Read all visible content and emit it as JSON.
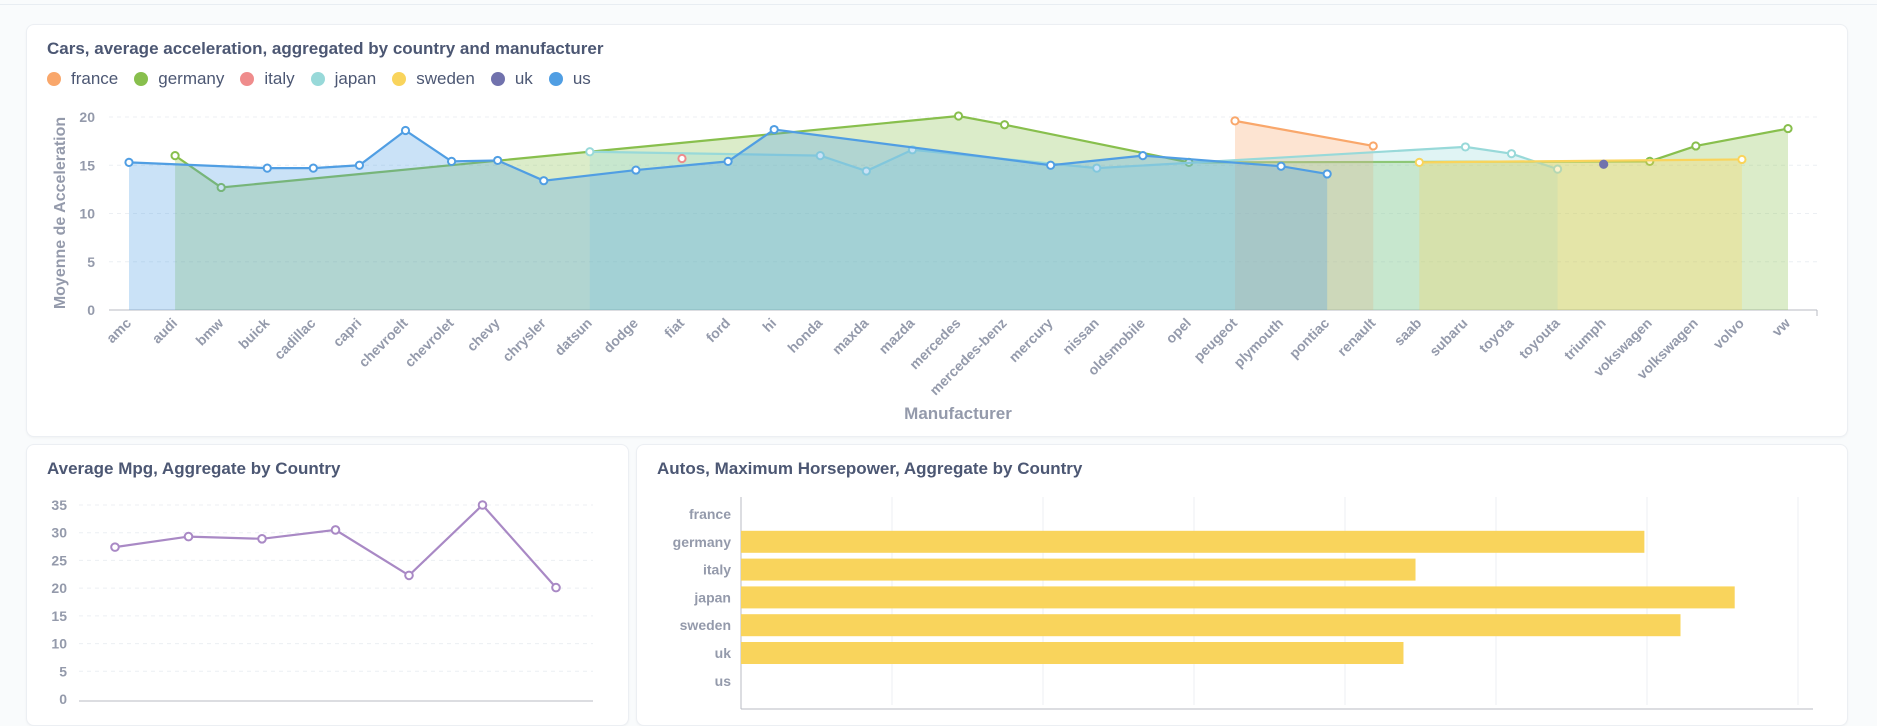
{
  "colors": {
    "france": "#f9a76b",
    "germany": "#88bf4d",
    "italy": "#ef8c8c",
    "japan": "#98d9d9",
    "sweden": "#f9d45c",
    "uk": "#7172ad",
    "us": "#509ee3",
    "mpg": "#a989c5",
    "hp": "#f9d45c"
  },
  "cards": {
    "accel_title": "Cars, average acceleration, aggregated by country and manufacturer",
    "mpg_title": "Average Mpg, Aggregate by Country",
    "hp_title": "Autos, Maximum Horsepower, Aggregate by Country"
  },
  "chart_data": [
    {
      "type": "area",
      "title": "Cars, average acceleration, aggregated by country and manufacturer",
      "xlabel": "Manufacturer",
      "ylabel": "Moyenne de Acceleration",
      "ylim": [
        0,
        20
      ],
      "yticks": [
        0,
        5,
        10,
        15,
        20
      ],
      "grid": true,
      "legend_position": "top-left",
      "categories": [
        "amc",
        "audi",
        "bmw",
        "buick",
        "cadillac",
        "capri",
        "chevroelt",
        "chevrolet",
        "chevy",
        "chrysler",
        "datsun",
        "dodge",
        "fiat",
        "ford",
        "hi",
        "honda",
        "maxda",
        "mazda",
        "mercedes",
        "mercedes-benz",
        "mercury",
        "nissan",
        "oldsmobile",
        "opel",
        "peugeot",
        "plymouth",
        "pontiac",
        "renault",
        "saab",
        "subaru",
        "toyota",
        "toyouta",
        "triumph",
        "vokswagen",
        "volkswagen",
        "volvo",
        "vw"
      ],
      "series": [
        {
          "name": "france",
          "points": [
            [
              "peugeot",
              19.6
            ],
            [
              "renault",
              17.0
            ]
          ]
        },
        {
          "name": "germany",
          "points": [
            [
              "audi",
              16.0
            ],
            [
              "bmw",
              12.7
            ],
            [
              "mercedes",
              20.1
            ],
            [
              "mercedes-benz",
              19.2
            ],
            [
              "opel",
              15.3
            ],
            [
              "vokswagen",
              15.4
            ],
            [
              "volkswagen",
              17.0
            ],
            [
              "vw",
              18.8
            ]
          ]
        },
        {
          "name": "italy",
          "points": [
            [
              "fiat",
              15.7
            ]
          ]
        },
        {
          "name": "japan",
          "points": [
            [
              "datsun",
              16.4
            ],
            [
              "honda",
              16.0
            ],
            [
              "maxda",
              14.4
            ],
            [
              "mazda",
              16.6
            ],
            [
              "nissan",
              14.7
            ],
            [
              "subaru",
              16.9
            ],
            [
              "toyota",
              16.2
            ],
            [
              "toyouta",
              14.6
            ]
          ]
        },
        {
          "name": "sweden",
          "points": [
            [
              "saab",
              15.3
            ],
            [
              "volvo",
              15.6
            ]
          ]
        },
        {
          "name": "uk",
          "points": [
            [
              "triumph",
              15.1
            ]
          ]
        },
        {
          "name": "us",
          "points": [
            [
              "amc",
              15.3
            ],
            [
              "buick",
              14.7
            ],
            [
              "cadillac",
              14.7
            ],
            [
              "capri",
              15.0
            ],
            [
              "chevroelt",
              18.6
            ],
            [
              "chevrolet",
              15.4
            ],
            [
              "chevy",
              15.5
            ],
            [
              "chrysler",
              13.4
            ],
            [
              "dodge",
              14.5
            ],
            [
              "ford",
              15.4
            ],
            [
              "hi",
              18.7
            ],
            [
              "mercury",
              15.0
            ],
            [
              "oldsmobile",
              16.0
            ],
            [
              "plymouth",
              14.9
            ],
            [
              "pontiac",
              14.1
            ]
          ]
        }
      ]
    },
    {
      "type": "line",
      "title": "Average Mpg, Aggregate by Country",
      "ylim": [
        0,
        35
      ],
      "yticks": [
        0,
        5,
        10,
        15,
        20,
        25,
        30,
        35
      ],
      "grid": true,
      "values": [
        27.4,
        29.3,
        28.9,
        30.5,
        22.3,
        35.0,
        20.1
      ]
    },
    {
      "type": "bar",
      "orientation": "horizontal",
      "title": "Autos, Maximum Horsepower, Aggregate by Country",
      "categories": [
        "france",
        "germany",
        "italy",
        "japan",
        "sweden",
        "uk",
        "us"
      ],
      "values": [
        0,
        150,
        112,
        165,
        156,
        110,
        0
      ],
      "xlim": [
        0,
        178
      ],
      "grid": true
    }
  ]
}
